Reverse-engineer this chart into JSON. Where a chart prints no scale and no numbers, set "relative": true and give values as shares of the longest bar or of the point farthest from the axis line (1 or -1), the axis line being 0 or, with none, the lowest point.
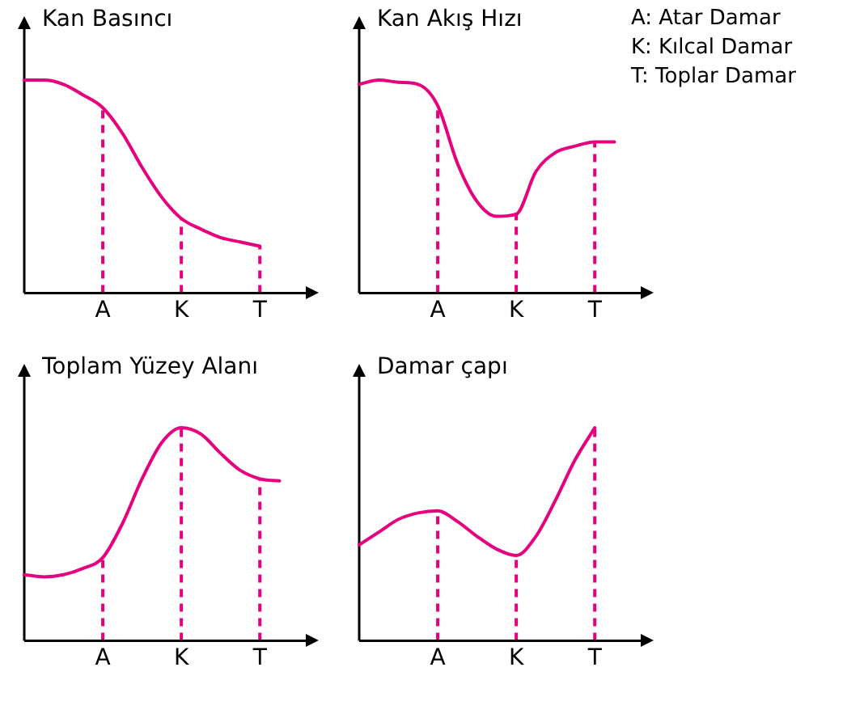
{
  "chart_data": [
    {
      "type": "line",
      "title": "Kan Basıncı",
      "relative": true,
      "color": "#e6007e",
      "line_style": "solid",
      "categories": [
        null,
        null,
        null,
        null,
        "A",
        null,
        null,
        null,
        "K",
        null,
        null,
        null,
        "T",
        null,
        null,
        null
      ],
      "values": [
        1,
        1,
        0.98,
        0.93,
        0.87,
        0.75,
        0.59,
        0.45,
        0.35,
        0.3,
        0.26,
        0.24,
        0.22,
        null,
        null,
        null
      ],
      "ref_lines": [
        {
          "axis": "x",
          "value": "A",
          "line_style": "dashed",
          "color": "#e6007e"
        },
        {
          "axis": "x",
          "value": "K",
          "line_style": "dashed",
          "color": "#e6007e"
        },
        {
          "axis": "x",
          "value": "T",
          "line_style": "dashed",
          "color": "#e6007e"
        }
      ]
    },
    {
      "type": "line",
      "title": "Kan Akış Hızı",
      "relative": true,
      "color": "#e6007e",
      "line_style": "solid",
      "categories": [
        null,
        null,
        null,
        null,
        "A",
        null,
        null,
        null,
        "K",
        null,
        null,
        null,
        "T",
        null,
        null,
        null
      ],
      "values": [
        0.98,
        1,
        0.99,
        0.98,
        0.88,
        0.61,
        0.43,
        0.36,
        0.37,
        0.57,
        0.66,
        0.69,
        0.71,
        0.71,
        null,
        null
      ],
      "ref_lines": [
        {
          "axis": "x",
          "value": "A",
          "line_style": "dashed",
          "color": "#e6007e"
        },
        {
          "axis": "x",
          "value": "K",
          "line_style": "dashed",
          "color": "#e6007e"
        },
        {
          "axis": "x",
          "value": "T",
          "line_style": "dashed",
          "color": "#e6007e"
        }
      ],
      "annotations": [
        "A: Atar Damar",
        "K: Kılcal Damar",
        "T: Toplar Damar"
      ]
    },
    {
      "type": "line",
      "title": "Toplam Yüzey Alanı",
      "relative": true,
      "color": "#e6007e",
      "line_style": "solid",
      "categories": [
        null,
        null,
        null,
        null,
        "A",
        null,
        null,
        null,
        "K",
        null,
        null,
        null,
        "T",
        null,
        null,
        null
      ],
      "values": [
        0.31,
        0.3,
        0.31,
        0.34,
        0.39,
        0.55,
        0.76,
        0.93,
        1,
        0.97,
        0.88,
        0.8,
        0.76,
        0.75,
        null,
        null
      ],
      "ref_lines": [
        {
          "axis": "x",
          "value": "A",
          "line_style": "dashed",
          "color": "#e6007e"
        },
        {
          "axis": "x",
          "value": "K",
          "line_style": "dashed",
          "color": "#e6007e"
        },
        {
          "axis": "x",
          "value": "T",
          "line_style": "dashed",
          "color": "#e6007e"
        }
      ]
    },
    {
      "type": "line",
      "title": "Damar çapı",
      "relative": true,
      "color": "#e6007e",
      "line_style": "solid",
      "categories": [
        null,
        null,
        null,
        null,
        "A",
        null,
        null,
        null,
        "K",
        null,
        null,
        null,
        "T",
        null,
        null,
        null
      ],
      "values": [
        0.45,
        0.51,
        0.57,
        0.6,
        0.61,
        0.56,
        0.49,
        0.43,
        0.4,
        0.49,
        0.66,
        0.85,
        1,
        null,
        null,
        null
      ],
      "ref_lines": [
        {
          "axis": "x",
          "value": "A",
          "line_style": "dashed",
          "color": "#e6007e"
        },
        {
          "axis": "x",
          "value": "K",
          "line_style": "dashed",
          "color": "#e6007e"
        },
        {
          "axis": "x",
          "value": "T",
          "line_style": "dashed",
          "color": "#e6007e"
        }
      ]
    }
  ]
}
